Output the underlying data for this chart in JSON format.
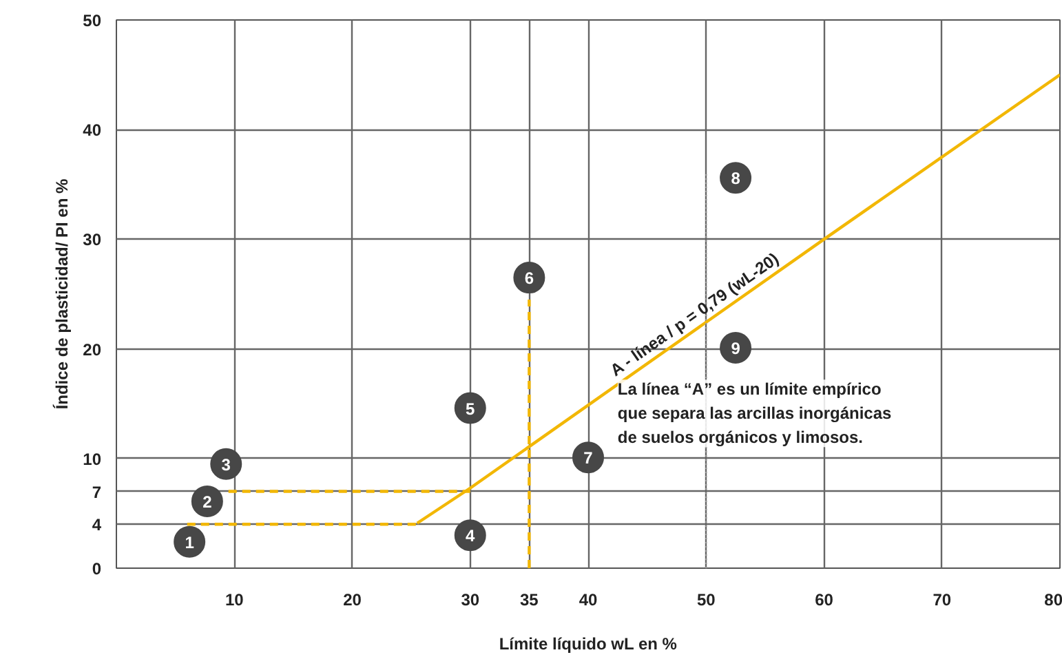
{
  "chart_data": {
    "type": "scatter",
    "xlabel": "Límite líquido wL en %",
    "ylabel": "Índice de plasticidad/ PI en %",
    "xlim": [
      0,
      80
    ],
    "ylim": [
      0,
      50
    ],
    "xticks": [
      10,
      20,
      30,
      35,
      40,
      50,
      60,
      70,
      80
    ],
    "yticks": [
      0,
      4,
      7,
      10,
      20,
      30,
      40,
      50
    ],
    "grid": true,
    "marker": "circle",
    "series": [
      {
        "type": "line",
        "color": "#f2b705",
        "line_style": "solid",
        "marker": "none",
        "x": [
          25.5,
          30,
          60,
          80
        ],
        "values": [
          4.1,
          7.3,
          30,
          45
        ]
      },
      {
        "type": "line",
        "color": "#f2b705",
        "line_style": "dashed",
        "marker": "none",
        "x": [
          6,
          25.5
        ],
        "values": [
          4,
          4
        ]
      },
      {
        "type": "line",
        "color": "#f2b705",
        "line_style": "dashed",
        "marker": "none",
        "x": [
          9.5,
          30
        ],
        "values": [
          7,
          7
        ]
      },
      {
        "type": "line",
        "color": "#f2b705",
        "line_style": "dashed",
        "marker": "none",
        "x": [
          35,
          35
        ],
        "values": [
          0,
          24.5
        ]
      },
      {
        "type": "line",
        "color": "#999999",
        "line_style": "dotted",
        "marker": "none",
        "x": [
          50,
          50
        ],
        "values": [
          0,
          36
        ]
      },
      {
        "color": "#474747",
        "x": [
          6.2,
          7.7,
          9.3,
          30,
          30,
          35,
          40,
          52.5,
          52.5
        ],
        "values": [
          2.4,
          6.1,
          9.5,
          3,
          14.6,
          26.5,
          10.1,
          35.6,
          20.1
        ]
      }
    ],
    "annotations": [
      {
        "text": "1",
        "x": 6.2,
        "y": 2.4
      },
      {
        "text": "2",
        "x": 7.7,
        "y": 6.1
      },
      {
        "text": "3",
        "x": 9.3,
        "y": 9.5
      },
      {
        "text": "4",
        "x": 30,
        "y": 3
      },
      {
        "text": "5",
        "x": 30,
        "y": 14.6
      },
      {
        "text": "6",
        "x": 35,
        "y": 26.5
      },
      {
        "text": "7",
        "x": 40,
        "y": 10.1
      },
      {
        "text": "8",
        "x": 52.5,
        "y": 35.6
      },
      {
        "text": "9",
        "x": 52.5,
        "y": 20.1
      },
      "A - línea / p = 0,79 (wL-20)",
      "La línea “A” es un límite empírico\nque separa las arcillas inorgánicas\nde suelos orgánicos y limosos."
    ]
  }
}
